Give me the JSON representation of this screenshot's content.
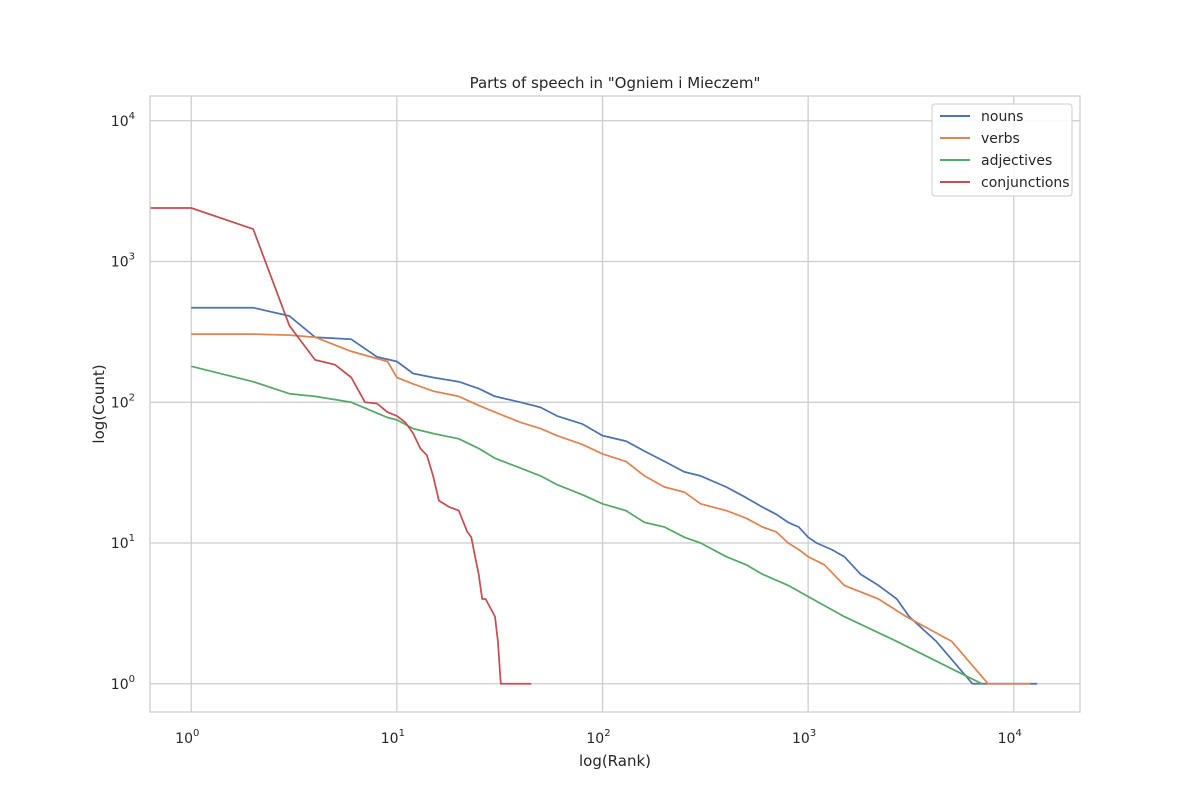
{
  "chart_data": {
    "type": "line",
    "title": "Parts of speech in \"Ogniem i Mieczem\"",
    "xlabel": "log(Rank)",
    "ylabel": "log(Count)",
    "xscale": "log",
    "yscale": "log",
    "xlim": [
      0.63,
      21000
    ],
    "ylim": [
      0.63,
      15000
    ],
    "x_ticks": [
      {
        "value": 1,
        "base": "10",
        "exp": "0"
      },
      {
        "value": 10,
        "base": "10",
        "exp": "1"
      },
      {
        "value": 100,
        "base": "10",
        "exp": "2"
      },
      {
        "value": 1000,
        "base": "10",
        "exp": "3"
      },
      {
        "value": 10000,
        "base": "10",
        "exp": "4"
      }
    ],
    "y_ticks": [
      {
        "value": 1,
        "base": "10",
        "exp": "0"
      },
      {
        "value": 10,
        "base": "10",
        "exp": "1"
      },
      {
        "value": 100,
        "base": "10",
        "exp": "2"
      },
      {
        "value": 1000,
        "base": "10",
        "exp": "3"
      },
      {
        "value": 10000,
        "base": "10",
        "exp": "4"
      }
    ],
    "grid": true,
    "legend_position": "top-right",
    "series": [
      {
        "name": "nouns",
        "color": "#4c72b0",
        "x": [
          1,
          2,
          3,
          4,
          6,
          8,
          10,
          12,
          15,
          20,
          25,
          30,
          40,
          50,
          60,
          80,
          100,
          130,
          160,
          200,
          250,
          300,
          400,
          500,
          600,
          700,
          800,
          900,
          1000,
          1100,
          1300,
          1500,
          1800,
          2200,
          2700,
          3100,
          4200,
          6300,
          13000
        ],
        "y": [
          470,
          470,
          410,
          290,
          280,
          210,
          195,
          160,
          150,
          140,
          125,
          110,
          100,
          92,
          80,
          70,
          58,
          53,
          45,
          38,
          32,
          30,
          25,
          21,
          18,
          16,
          14,
          13,
          11,
          10,
          9,
          8,
          6,
          5,
          4,
          3,
          2,
          1,
          1
        ]
      },
      {
        "name": "verbs",
        "color": "#dd8452",
        "x": [
          1,
          2,
          3,
          4,
          6,
          9,
          10,
          12,
          15,
          20,
          25,
          30,
          40,
          50,
          60,
          80,
          100,
          130,
          160,
          200,
          250,
          300,
          400,
          500,
          600,
          700,
          800,
          900,
          1000,
          1200,
          1500,
          2200,
          3000,
          5000,
          7500,
          12000
        ],
        "y": [
          305,
          305,
          300,
          290,
          230,
          195,
          150,
          135,
          120,
          110,
          95,
          85,
          72,
          65,
          58,
          50,
          43,
          38,
          30,
          25,
          23,
          19,
          17,
          15,
          13,
          12,
          10,
          9,
          8,
          7,
          5,
          4,
          3,
          2,
          1,
          1
        ]
      },
      {
        "name": "adjectives",
        "color": "#55a868",
        "x": [
          1,
          2,
          3,
          4,
          6,
          9,
          10,
          12,
          15,
          20,
          25,
          30,
          40,
          50,
          60,
          80,
          100,
          130,
          160,
          200,
          250,
          300,
          400,
          500,
          600,
          800,
          1050,
          1500,
          2700,
          7000
        ],
        "y": [
          180,
          140,
          115,
          110,
          100,
          78,
          75,
          65,
          60,
          55,
          47,
          40,
          34,
          30,
          26,
          22,
          19,
          17,
          14,
          13,
          11,
          10,
          8,
          7,
          6,
          5,
          4,
          3,
          2,
          1
        ]
      },
      {
        "name": "conjunctions",
        "color": "#c44e52",
        "x": [
          0.5,
          1,
          2,
          3,
          4,
          5,
          6,
          7,
          8,
          9,
          10,
          11,
          12,
          13,
          14,
          15,
          16,
          18,
          20,
          22,
          23,
          24,
          25,
          26,
          27,
          30,
          31,
          32,
          33,
          45
        ],
        "y": [
          2400,
          2400,
          1700,
          350,
          200,
          185,
          150,
          100,
          98,
          85,
          80,
          72,
          60,
          47,
          42,
          30,
          20,
          18,
          17,
          12,
          11,
          8,
          6,
          4,
          4,
          3,
          2,
          1,
          1,
          1
        ]
      }
    ]
  }
}
